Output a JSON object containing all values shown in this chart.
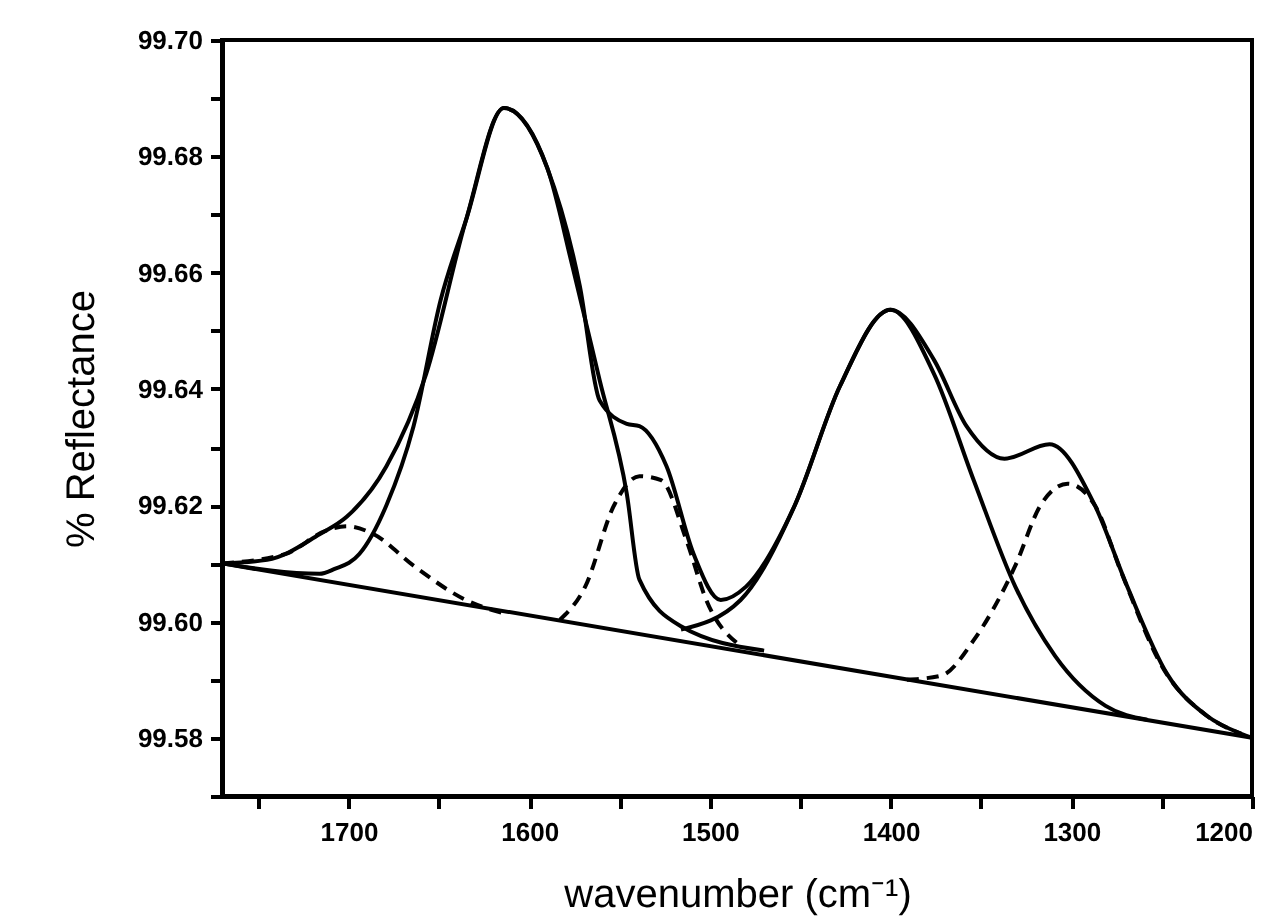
{
  "chart_data": {
    "type": "line",
    "xlabel": "wavenumber (cm⁻¹)",
    "ylabel": "% Reflectance",
    "xlim": [
      1770,
      1200
    ],
    "ylim": [
      99.57,
      99.7
    ],
    "xticks": [
      {
        "value": 1750,
        "label": null
      },
      1700,
      {
        "value": 1650,
        "label": null
      },
      1600,
      {
        "value": 1550,
        "label": null
      },
      1500,
      {
        "value": 1450,
        "label": null
      },
      1400,
      {
        "value": 1350,
        "label": null
      },
      1300,
      {
        "value": 1250,
        "label": null
      },
      1200
    ],
    "yticks": [
      {
        "value": 99.57,
        "label": null
      },
      99.58,
      {
        "value": 99.59,
        "label": null
      },
      {
        "value": 99.6,
        "label": "99.60"
      },
      {
        "value": 99.61,
        "label": null
      },
      99.62,
      {
        "value": 99.63,
        "label": null
      },
      99.64,
      {
        "value": 99.65,
        "label": null
      },
      99.66,
      {
        "value": 99.67,
        "label": null
      },
      99.68,
      {
        "value": 99.69,
        "label": null
      },
      {
        "value": 99.7,
        "label": "99.70"
      }
    ],
    "grid": false,
    "legend": false,
    "marker": "none",
    "series": [
      {
        "color": "#000000",
        "line_style": "solid",
        "x": [
          1770,
          1200
        ],
        "values": [
          99.61,
          99.58
        ]
      },
      {
        "color": "#000000",
        "line_style": "solid",
        "x": [
          1770,
          1745,
          1716,
          1701,
          1679,
          1657,
          1635,
          1614,
          1590,
          1572,
          1561,
          1546,
          1539,
          1524,
          1509,
          1494,
          1480,
          1453,
          1428,
          1400,
          1376,
          1358,
          1337,
          1312,
          1287,
          1269,
          1247,
          1225,
          1206,
          1200
        ],
        "values": [
          99.61,
          99.6106,
          99.615,
          99.618,
          99.6267,
          99.6426,
          99.669,
          99.6883,
          99.678,
          99.6577,
          99.638,
          99.634,
          99.6336,
          99.6267,
          99.6116,
          99.6037,
          99.606,
          99.62,
          99.6405,
          99.6536,
          99.645,
          99.6336,
          99.628,
          99.6305,
          99.62,
          99.606,
          99.591,
          99.5838,
          99.5807,
          99.58
        ]
      },
      {
        "color": "#000000",
        "line_style": "solid",
        "x": [
          1770,
          1716,
          1708,
          1694,
          1679,
          1664,
          1649,
          1635,
          1614,
          1590,
          1576,
          1561,
          1546,
          1539,
          1516,
          1470
        ],
        "values": [
          99.61,
          99.6082,
          99.609,
          99.6116,
          99.62,
          99.6336,
          99.6553,
          99.669,
          99.6883,
          99.678,
          99.661,
          99.6415,
          99.622,
          99.6072,
          99.5992,
          99.595
        ]
      },
      {
        "color": "#000000",
        "line_style": "dashed",
        "x": [
          1770,
          1735,
          1712,
          1701,
          1686,
          1664,
          1635,
          1613
        ],
        "values": [
          99.61,
          99.6116,
          99.6157,
          99.6164,
          99.615,
          99.6096,
          99.6037,
          99.6013
        ]
      },
      {
        "color": "#000000",
        "line_style": "dashed",
        "x": [
          1583,
          1569,
          1553,
          1539,
          1527,
          1513,
          1502,
          1483
        ],
        "values": [
          99.6003,
          99.606,
          99.62,
          99.625,
          99.6243,
          99.614,
          99.6037,
          99.5958
        ]
      },
      {
        "color": "#000000",
        "line_style": "solid",
        "x": [
          1516,
          1483,
          1453,
          1428,
          1400,
          1376,
          1354,
          1331,
          1309,
          1281,
          1258
        ],
        "values": [
          99.5986,
          99.6037,
          99.62,
          99.6405,
          99.6536,
          99.6426,
          99.6243,
          99.606,
          99.5941,
          99.5855,
          99.5831
        ]
      },
      {
        "color": "#000000",
        "line_style": "dashed",
        "x": [
          1391,
          1372,
          1354,
          1331,
          1317,
          1302,
          1287,
          1272,
          1250,
          1225,
          1206
        ],
        "values": [
          99.59,
          99.5907,
          99.5968,
          99.6096,
          99.62,
          99.6237,
          99.62,
          99.6082,
          99.5924,
          99.5838,
          99.5807
        ]
      }
    ]
  }
}
